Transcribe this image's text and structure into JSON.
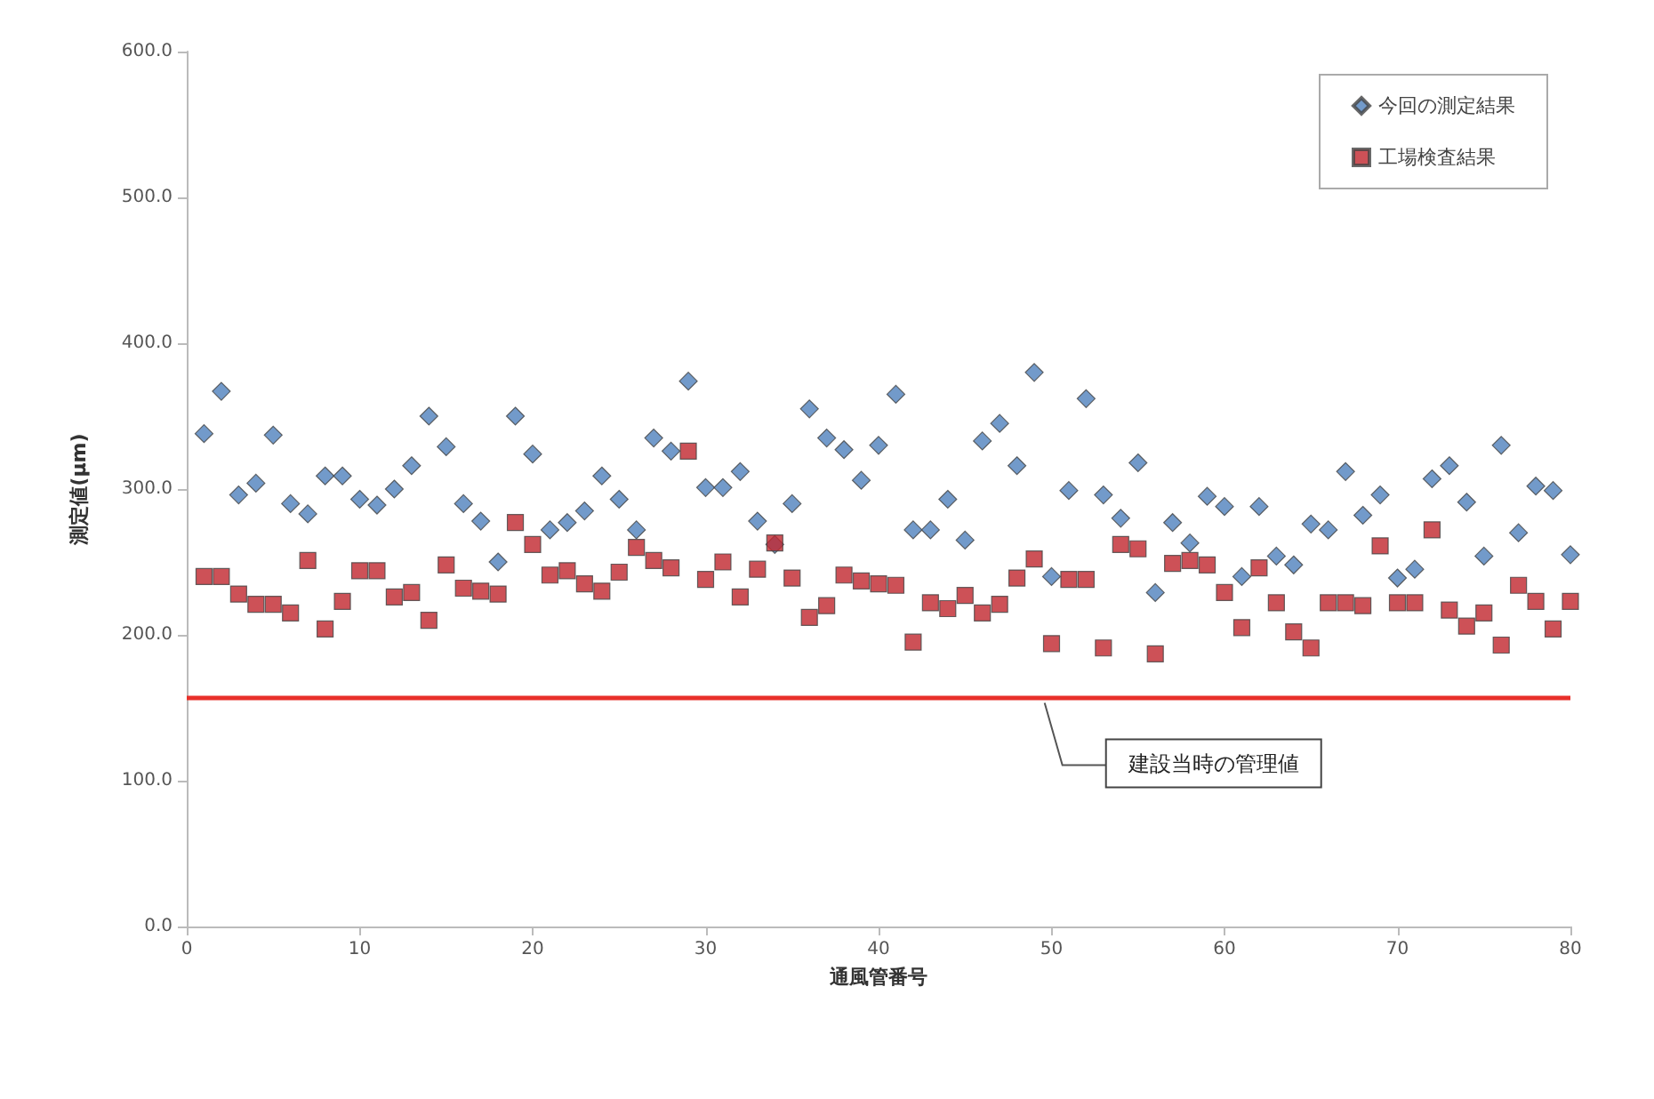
{
  "chart_data": {
    "type": "scatter",
    "xlabel": "通風管番号",
    "ylabel": "測定値(μm)",
    "x": [
      1,
      2,
      3,
      4,
      5,
      6,
      7,
      8,
      9,
      10,
      11,
      12,
      13,
      14,
      15,
      16,
      17,
      18,
      19,
      20,
      21,
      22,
      23,
      24,
      25,
      26,
      27,
      28,
      29,
      30,
      31,
      32,
      33,
      34,
      35,
      36,
      37,
      38,
      39,
      40,
      41,
      42,
      43,
      44,
      45,
      46,
      47,
      48,
      49,
      50,
      51,
      52,
      53,
      54,
      55,
      56,
      57,
      58,
      59,
      60,
      61,
      62,
      63,
      64,
      65,
      66,
      67,
      68,
      69,
      70,
      71,
      72,
      73,
      74,
      75,
      76,
      77,
      78,
      79,
      80
    ],
    "series": [
      {
        "name": "今回の測定結果",
        "color": "#4f81bd",
        "marker": "diamond",
        "values": [
          338,
          367,
          296,
          304,
          337,
          290,
          283,
          309,
          309,
          293,
          289,
          300,
          316,
          350,
          329,
          290,
          278,
          250,
          350,
          324,
          272,
          277,
          285,
          309,
          293,
          272,
          335,
          326,
          374,
          301,
          301,
          312,
          278,
          262,
          290,
          355,
          335,
          327,
          306,
          330,
          365,
          272,
          272,
          293,
          265,
          333,
          345,
          316,
          380,
          240,
          299,
          362,
          296,
          280,
          318,
          229,
          277,
          263,
          295,
          288,
          240,
          288,
          254,
          248,
          276,
          272,
          312,
          282,
          296,
          239,
          245,
          307,
          316,
          291,
          254,
          330,
          270,
          302,
          299,
          255
        ]
      },
      {
        "name": "工場検査結果",
        "color": "#c0262d",
        "marker": "square",
        "values": [
          240,
          240,
          228,
          221,
          221,
          215,
          251,
          204,
          223,
          244,
          244,
          226,
          229,
          210,
          248,
          232,
          230,
          228,
          277,
          262,
          241,
          244,
          235,
          230,
          243,
          260,
          251,
          246,
          326,
          238,
          250,
          226,
          245,
          263,
          239,
          212,
          220,
          241,
          237,
          235,
          234,
          195,
          222,
          218,
          227,
          215,
          221,
          239,
          252,
          194,
          238,
          238,
          191,
          262,
          259,
          187,
          249,
          251,
          248,
          229,
          205,
          246,
          222,
          202,
          191,
          222,
          222,
          220,
          261,
          222,
          222,
          272,
          217,
          206,
          215,
          193,
          234,
          223,
          204,
          223
        ]
      }
    ],
    "xlim": [
      0,
      80
    ],
    "xticks": [
      0,
      10,
      20,
      30,
      40,
      50,
      60,
      70,
      80
    ],
    "ylim": [
      0,
      600
    ],
    "yticks": [
      {
        "value": 0,
        "label": "0.0"
      },
      {
        "value": 100,
        "label": "100.0"
      },
      {
        "value": 200,
        "label": "200.0"
      },
      {
        "value": 300,
        "label": "300.0"
      },
      {
        "value": 400,
        "label": "400.0"
      },
      {
        "value": 500,
        "label": "500.0"
      },
      {
        "value": 600,
        "label": "600.0"
      }
    ],
    "ref_lines": [
      {
        "axis": "y",
        "value": 157,
        "label": "建設当時の管理値",
        "color": "#e8302a"
      }
    ],
    "grid": false,
    "legend": "top right"
  }
}
